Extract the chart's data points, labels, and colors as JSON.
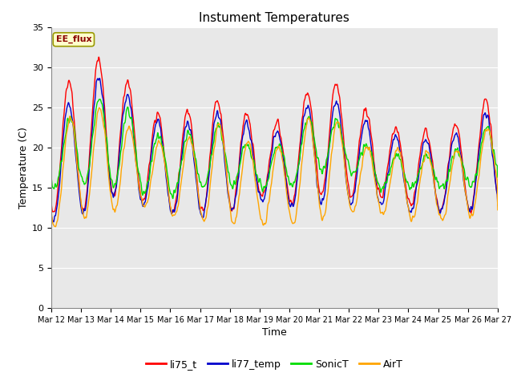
{
  "title": "Instument Temperatures",
  "xlabel": "Time",
  "ylabel": "Temperature (C)",
  "ylim": [
    0,
    35
  ],
  "yticks": [
    0,
    5,
    10,
    15,
    20,
    25,
    30,
    35
  ],
  "xtick_labels": [
    "Mar 12",
    "Mar 13",
    "Mar 14",
    "Mar 15",
    "Mar 16",
    "Mar 17",
    "Mar 18",
    "Mar 19",
    "Mar 20",
    "Mar 21",
    "Mar 22",
    "Mar 23",
    "Mar 24",
    "Mar 25",
    "Mar 26",
    "Mar 27"
  ],
  "annotation_text": "EE_flux",
  "annotation_bg": "#FFFFCC",
  "annotation_border": "#999900",
  "annotation_text_color": "#8B0000",
  "series_colors": {
    "li75_t": "#FF0000",
    "li77_temp": "#0000CC",
    "SonicT": "#00DD00",
    "AirT": "#FFA500"
  },
  "fig_bg": "#FFFFFF",
  "plot_bg": "#E8E8E8",
  "grid_color": "#FFFFFF",
  "line_width": 1.0,
  "n_days": 15,
  "pts_per_day": 96
}
